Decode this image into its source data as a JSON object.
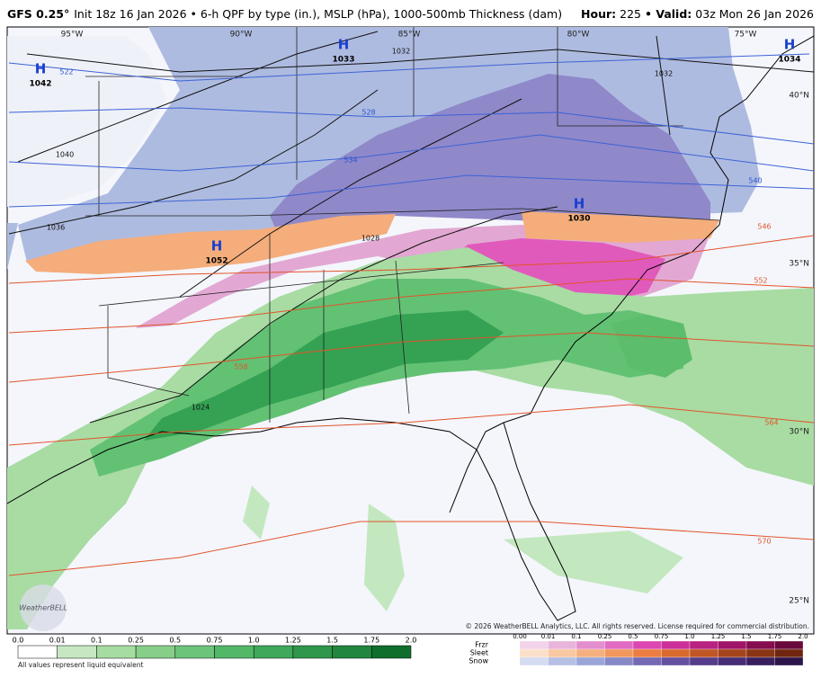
{
  "header": {
    "model": "GFS 0.25°",
    "title": "Init 18z 16 Jan 2026 • 6-h QPF by type (in.), MSLP (hPa), 1000-500mb Thickness (dam)",
    "hour_label": "Hour:",
    "hour": "225",
    "valid_label": "• Valid:",
    "valid": "03z Mon 26 Jan 2026"
  },
  "map": {
    "longitudes": [
      "95°W",
      "90°W",
      "85°W",
      "80°W",
      "75°W"
    ],
    "latitudes": [
      "40°N",
      "35°N",
      "30°N",
      "25°N"
    ],
    "highs": [
      {
        "symbol": "H",
        "pressure": "1042"
      },
      {
        "symbol": "H",
        "pressure": "1033"
      },
      {
        "symbol": "H",
        "pressure": "1034"
      },
      {
        "symbol": "H",
        "pressure": "1030"
      },
      {
        "symbol": "H",
        "pressure": "1052"
      }
    ],
    "isobar_labels": [
      "1040",
      "1036",
      "1032",
      "1032",
      "1028",
      "1024"
    ],
    "thickness_labels": [
      "522",
      "528",
      "534",
      "540",
      "546",
      "552",
      "558",
      "564",
      "570"
    ],
    "copyright": "© 2026 WeatherBELL Analytics, LLC. All rights reserved. License required for commercial distribution.",
    "logo": "WeatherBELL"
  },
  "legend": {
    "rain_ticks": [
      "0.0",
      "0.01",
      "0.1",
      "0.25",
      "0.5",
      "0.75",
      "1.0",
      "1.25",
      "1.5",
      "1.75",
      "2.0"
    ],
    "note": "All values represent liquid equivalent",
    "types": [
      "Frzr",
      "Sleet",
      "Snow"
    ],
    "mixed_ticks": [
      "0.00",
      "0.01",
      "0.1",
      "0.25",
      "0.5",
      "0.75",
      "1.0",
      "1.25",
      "1.5",
      "1.75",
      "2.0"
    ]
  }
}
